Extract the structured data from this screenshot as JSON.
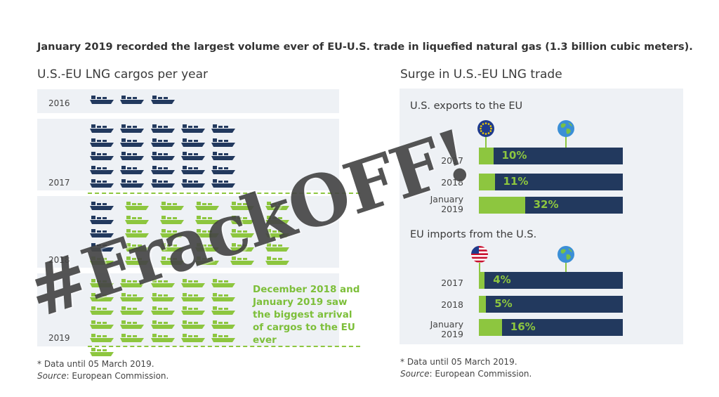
{
  "headline": "January 2019 recorded the largest volume ever of EU-U.S. trade in liquefied natural gas (1.3 billion cubic meters).",
  "left_title": "U.S.-EU LNG cargos per year",
  "right_title": "Surge in U.S.-EU LNG trade",
  "colors": {
    "navy": "#22395e",
    "green": "#8dc63f",
    "panel": "#eef1f5"
  },
  "cargos": [
    {
      "year": "2016",
      "count": 3,
      "color": "navy"
    },
    {
      "year": "2017",
      "count": 25,
      "color": "navy"
    },
    {
      "year": "2018",
      "count": 30,
      "color": "mixed"
    },
    {
      "year": "2019",
      "count": 26,
      "color": "green"
    }
  ],
  "callout": "December 2018 and January 2019 saw the biggest arrival of cargos to the EU ever",
  "footnote": {
    "note": "* Data until 05 March 2019.",
    "source_label": "Source",
    "source_text": ": European Commission."
  },
  "chart_data": [
    {
      "type": "bar",
      "title": "U.S. exports to the EU",
      "categories": [
        "2017",
        "2018",
        "January 2019"
      ],
      "values": [
        10,
        11,
        32
      ],
      "labels": [
        "10%",
        "11%",
        "32%"
      ],
      "ylim": [
        0,
        100
      ]
    },
    {
      "type": "bar",
      "title": "EU imports from the U.S.",
      "categories": [
        "2017",
        "2018",
        "January 2019"
      ],
      "values": [
        4,
        5,
        16
      ],
      "labels": [
        "4%",
        "5%",
        "16%"
      ],
      "ylim": [
        0,
        100
      ]
    }
  ],
  "watermark": "#FrackOFF!"
}
